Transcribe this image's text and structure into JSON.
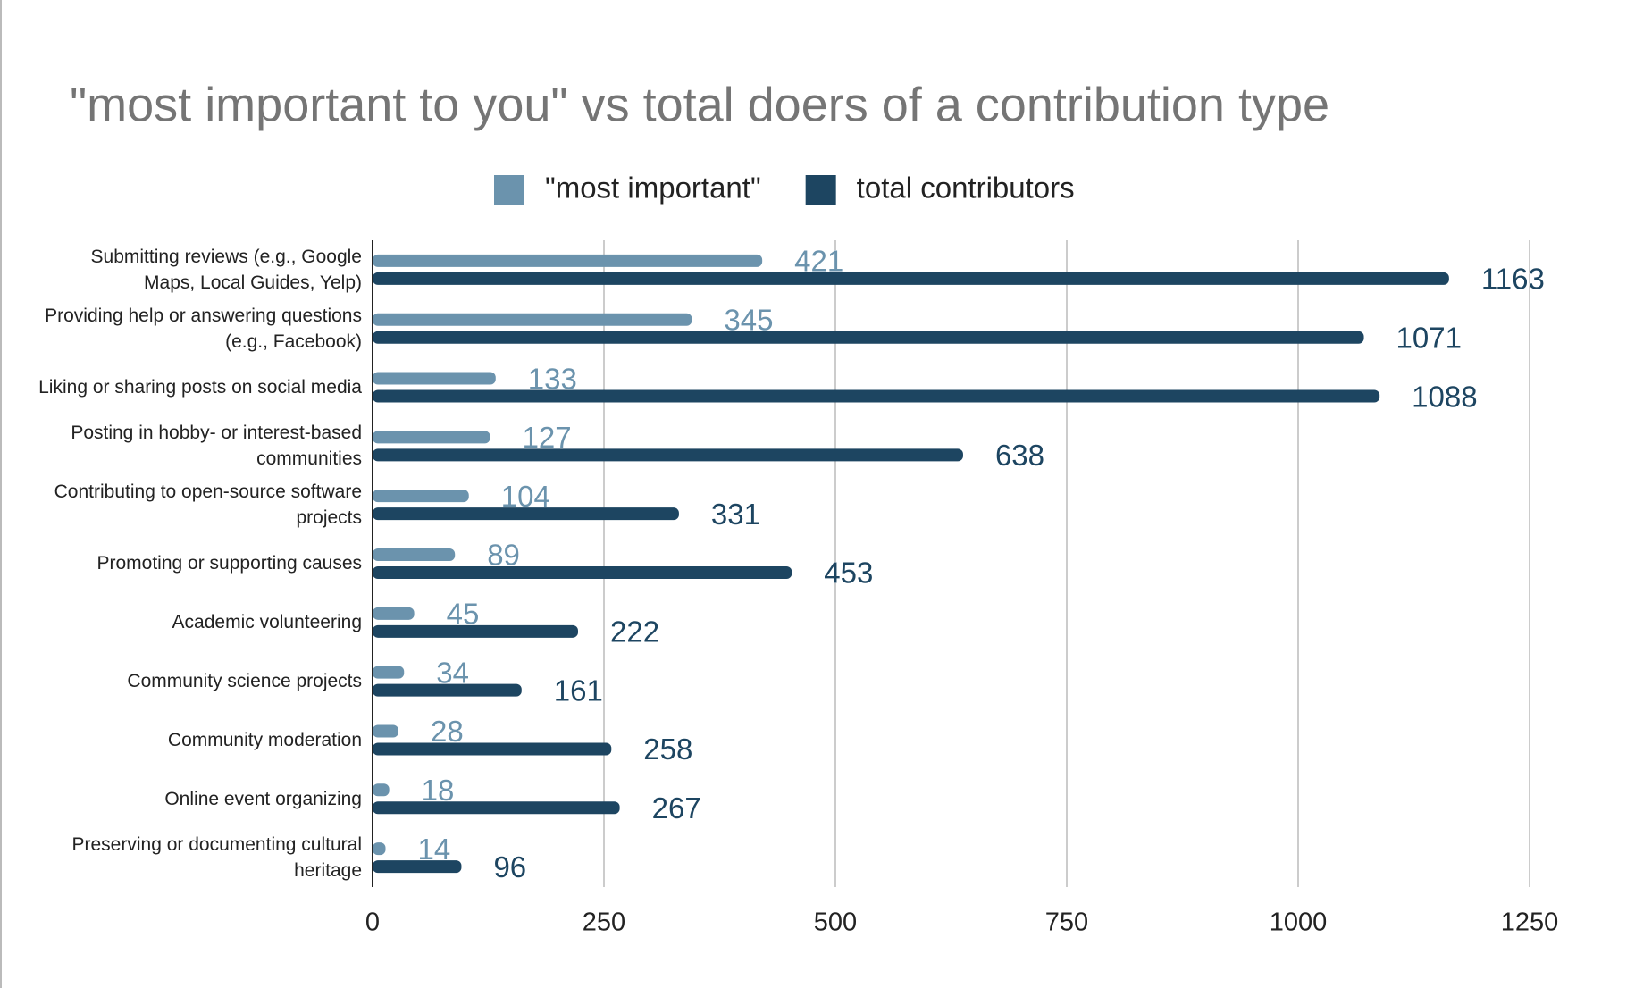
{
  "chart_data": {
    "type": "bar",
    "orientation": "horizontal",
    "title": "\"most important to you\" vs total doers of a contribution type",
    "categories": [
      "Submitting reviews (e.g., Google Maps, Local Guides, Yelp)",
      "Providing help or answering questions (e.g., Facebook)",
      "Liking or sharing posts on social media",
      "Posting in hobby- or interest-based communities",
      "Contributing to open-source software projects",
      "Promoting or supporting causes",
      "Academic volunteering",
      "Community science projects",
      "Community moderation",
      "Online event organizing",
      "Preserving or documenting cultural heritage"
    ],
    "series": [
      {
        "name": "\"most important\"",
        "color": "#6b93ad",
        "label_color": "#6b93ad",
        "values": [
          421,
          345,
          133,
          127,
          104,
          89,
          45,
          34,
          28,
          18,
          14
        ]
      },
      {
        "name": "total contributors",
        "color": "#1d4561",
        "label_color": "#1d4561",
        "values": [
          1163,
          1071,
          1088,
          638,
          331,
          453,
          222,
          161,
          258,
          267,
          96
        ]
      }
    ],
    "xlim": [
      0,
      1250
    ],
    "xticks": [
      0,
      250,
      500,
      750,
      1000,
      1250
    ],
    "grid": true,
    "legend": "top"
  }
}
